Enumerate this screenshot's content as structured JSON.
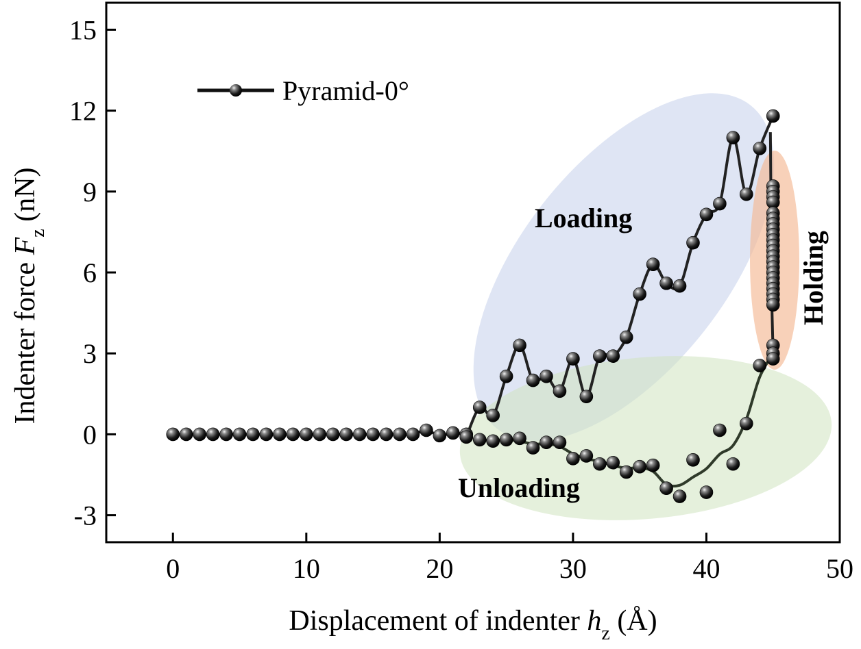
{
  "chart_data": {
    "type": "line",
    "xlabel": "Displacement of indenter ",
    "xlabel_symbol": "h",
    "xlabel_sub": "z",
    "xlabel_unit": " (Å)",
    "ylabel": "Indenter force ",
    "ylabel_symbol": "F",
    "ylabel_sub": "z",
    "ylabel_unit": " (nN)",
    "xlim": [
      -5,
      50
    ],
    "ylim": [
      -4,
      16
    ],
    "xticks": [
      0,
      10,
      20,
      30,
      40,
      50
    ],
    "yticks": [
      -3,
      0,
      3,
      6,
      9,
      12,
      15
    ],
    "grid": false,
    "legend_position": "top-left",
    "series": [
      {
        "name": "Pyramid-0°",
        "marker": "sphere",
        "color": "#222222",
        "segments": {
          "approach": {
            "x": [
              0,
              1,
              2,
              3,
              4,
              5,
              6,
              7,
              8,
              9,
              10,
              11,
              12,
              13,
              14,
              15,
              16,
              17,
              18,
              19,
              20,
              21,
              22
            ],
            "y": [
              0,
              0,
              0,
              0,
              0,
              0,
              0,
              0,
              0,
              0,
              0,
              0,
              0,
              0,
              0,
              0,
              0,
              0,
              0,
              0.15,
              -0.05,
              0.05,
              0
            ]
          },
          "loading": {
            "x": [
              22,
              23,
              24,
              25,
              26,
              27,
              28,
              29,
              30,
              31,
              32,
              33,
              34,
              35,
              36,
              37,
              38,
              39,
              40,
              41,
              42,
              43,
              44,
              45
            ],
            "y": [
              -0.1,
              1.0,
              0.7,
              2.15,
              3.3,
              2.0,
              2.15,
              1.6,
              2.8,
              1.4,
              2.9,
              2.9,
              3.6,
              5.2,
              6.3,
              5.6,
              5.5,
              7.1,
              8.15,
              8.55,
              11.0,
              8.9,
              10.6,
              11.8
            ]
          },
          "holding": {
            "x": [
              45,
              45,
              45,
              45,
              45,
              45,
              45,
              45,
              45,
              45,
              45,
              45,
              45,
              45,
              45,
              45,
              45,
              45,
              45,
              45,
              45,
              45,
              45,
              45,
              45
            ],
            "y": [
              9.2,
              9.0,
              8.8,
              8.6,
              8.2,
              8.0,
              7.8,
              7.6,
              7.4,
              7.2,
              7.0,
              6.8,
              6.6,
              6.4,
              6.2,
              6.0,
              5.8,
              5.6,
              5.4,
              5.2,
              5.0,
              4.8,
              3.3,
              3.0,
              2.8
            ]
          },
          "unloading": {
            "x": [
              44,
              43,
              42,
              41,
              40,
              39,
              38,
              37,
              36,
              35,
              34,
              33,
              32,
              31,
              30,
              29,
              28,
              27,
              26,
              25,
              24,
              23
            ],
            "y": [
              2.55,
              0.4,
              -1.1,
              0.15,
              -2.15,
              -0.95,
              -2.3,
              -2.0,
              -1.15,
              -1.2,
              -1.4,
              -1.05,
              -1.1,
              -0.8,
              -0.9,
              -0.3,
              -0.3,
              -0.5,
              -0.15,
              -0.2,
              -0.25,
              -0.2
            ]
          }
        }
      }
    ],
    "annotations": {
      "loading": "Loading",
      "unloading": "Unloading",
      "holding": "Holding"
    }
  }
}
